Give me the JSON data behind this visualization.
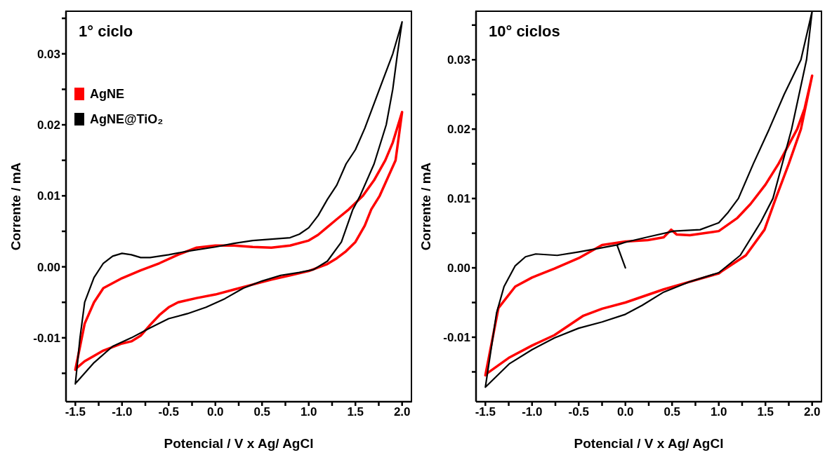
{
  "chart_data": [
    {
      "type": "line",
      "title": "1° ciclo",
      "xlabel": "Potencial / V x Ag/ AgCl",
      "ylabel": "Corrente / mA",
      "xlim": [
        -1.6,
        2.1
      ],
      "ylim": [
        -0.019,
        0.036
      ],
      "xticks": [
        -1.5,
        {
          "value": -1.25,
          "label": null
        },
        {
          "value": -1,
          "label": "-1.0"
        },
        {
          "value": -0.75,
          "label": null
        },
        {
          "value": -0.5,
          "label": "-0.5"
        },
        {
          "value": -0.25,
          "label": null
        },
        {
          "value": 0,
          "label": "0.0"
        },
        {
          "value": 0.25,
          "label": null
        },
        0.5,
        {
          "value": 0.75,
          "label": null
        },
        {
          "value": 1,
          "label": "1.0"
        },
        {
          "value": 1.25,
          "label": null
        },
        1.5,
        {
          "value": 1.75,
          "label": null
        },
        {
          "value": 2,
          "label": "2.0"
        }
      ],
      "yticks": [
        {
          "value": -0.015,
          "label": null
        },
        {
          "value": -0.01,
          "label": "-0.01"
        },
        {
          "value": -0.005,
          "label": null
        },
        {
          "value": 0,
          "label": "0.00"
        },
        {
          "value": 0.005,
          "label": null
        },
        0.01,
        {
          "value": 0.015,
          "label": null
        },
        {
          "value": 0.02,
          "label": "0.02"
        },
        {
          "value": 0.025,
          "label": null
        },
        {
          "value": 0.03,
          "label": "0.03"
        },
        {
          "value": 0.035,
          "label": null
        }
      ],
      "legend": "top left",
      "marker": "none",
      "line_style": "solid",
      "grid": false,
      "series": [
        {
          "name": "AgNE",
          "color": "#ff0000",
          "x": [
            -1.5,
            -1.4,
            -1.3,
            -1.2,
            -1.0,
            -0.8,
            -0.6,
            -0.4,
            -0.2,
            0.0,
            0.2,
            0.4,
            0.6,
            0.8,
            1.0,
            1.1,
            1.2,
            1.3,
            1.43,
            1.58,
            1.7,
            1.82,
            1.9,
            2.0,
            1.93,
            1.76,
            1.67,
            1.6,
            1.5,
            1.4,
            1.3,
            1.2,
            1.0,
            0.8,
            0.6,
            0.4,
            0.2,
            0.0,
            -0.2,
            -0.4,
            -0.5,
            -0.6,
            -0.7,
            -0.8,
            -0.9,
            -1.0,
            -1.2,
            -1.4,
            -1.49
          ],
          "values": [
            -0.0145,
            -0.008,
            -0.005,
            -0.003,
            -0.0016,
            -0.0005,
            0.0005,
            0.0017,
            0.0027,
            0.003,
            0.003,
            0.0028,
            0.0027,
            0.003,
            0.0037,
            0.0045,
            0.0056,
            0.0067,
            0.0081,
            0.01,
            0.0122,
            0.015,
            0.0175,
            0.0218,
            0.015,
            0.01,
            0.0081,
            0.0058,
            0.0035,
            0.0022,
            0.0012,
            0.0004,
            -0.0006,
            -0.0012,
            -0.0018,
            -0.0025,
            -0.0032,
            -0.0039,
            -0.0044,
            -0.005,
            -0.0057,
            -0.0068,
            -0.0082,
            -0.0097,
            -0.0105,
            -0.0108,
            -0.0118,
            -0.0133,
            -0.0143
          ]
        },
        {
          "name": "AgNE@TiO₂",
          "color": "#000000",
          "x": [
            -1.5,
            -1.45,
            -1.4,
            -1.3,
            -1.2,
            -1.1,
            -1.0,
            -0.9,
            -0.8,
            -0.7,
            -0.5,
            -0.3,
            0.0,
            0.2,
            0.4,
            0.6,
            0.8,
            0.9,
            1.0,
            1.1,
            1.2,
            1.3,
            1.4,
            1.5,
            1.6,
            1.7,
            1.8,
            1.9,
            2.0,
            1.95,
            1.9,
            1.83,
            1.7,
            1.55,
            1.47,
            1.35,
            1.2,
            1.05,
            0.9,
            0.7,
            0.5,
            0.3,
            0.1,
            -0.1,
            -0.3,
            -0.5,
            -0.7,
            -0.9,
            -1.1,
            -1.3,
            -1.49
          ],
          "values": [
            -0.0165,
            -0.01,
            -0.005,
            -0.0015,
            0.0005,
            0.0015,
            0.0019,
            0.0017,
            0.0013,
            0.0013,
            0.0017,
            0.0022,
            0.0028,
            0.0033,
            0.0037,
            0.0039,
            0.0041,
            0.0046,
            0.0055,
            0.0072,
            0.0095,
            0.0115,
            0.0145,
            0.0165,
            0.0195,
            0.023,
            0.0265,
            0.03,
            0.0345,
            0.03,
            0.025,
            0.02,
            0.0145,
            0.01,
            0.008,
            0.0035,
            0.0008,
            -0.0004,
            -0.0008,
            -0.0012,
            -0.002,
            -0.003,
            -0.0045,
            -0.0057,
            -0.0066,
            -0.0073,
            -0.0086,
            -0.01,
            -0.0112,
            -0.0135,
            -0.0163
          ]
        }
      ]
    },
    {
      "type": "line",
      "title": "10° ciclos",
      "xlabel": "Potencial / V x Ag/ AgCl",
      "ylabel": "Corrente / mA",
      "xlim": [
        -1.6,
        2.1
      ],
      "ylim": [
        -0.0193,
        0.037
      ],
      "xticks": [
        -1.5,
        {
          "value": -1.25,
          "label": null
        },
        {
          "value": -1,
          "label": "-1.0"
        },
        {
          "value": -0.75,
          "label": null
        },
        {
          "value": -0.5,
          "label": "-0.5"
        },
        {
          "value": -0.25,
          "label": null
        },
        {
          "value": 0,
          "label": "0.0"
        },
        {
          "value": 0.25,
          "label": null
        },
        0.5,
        {
          "value": 0.75,
          "label": null
        },
        {
          "value": 1,
          "label": "1.0"
        },
        {
          "value": 1.25,
          "label": null
        },
        1.5,
        {
          "value": 1.75,
          "label": null
        },
        {
          "value": 2,
          "label": "2.0"
        }
      ],
      "yticks": [
        {
          "value": -0.015,
          "label": null
        },
        {
          "value": -0.01,
          "label": "-0.01"
        },
        {
          "value": -0.005,
          "label": null
        },
        {
          "value": 0,
          "label": "0.00"
        },
        {
          "value": 0.005,
          "label": null
        },
        0.01,
        {
          "value": 0.015,
          "label": null
        },
        {
          "value": 0.02,
          "label": "0.02"
        },
        {
          "value": 0.025,
          "label": null
        },
        {
          "value": 0.03,
          "label": "0.03"
        },
        {
          "value": 0.035,
          "label": null
        }
      ],
      "marker": "none",
      "line_style": "solid",
      "grid": false,
      "series": [
        {
          "color": "#ff0000",
          "x": [
            -1.5,
            -1.36,
            -1.18,
            -1.0,
            -0.76,
            -0.5,
            -0.25,
            0.0,
            0.24,
            0.41,
            0.49,
            0.55,
            0.69,
            1.0,
            1.2,
            1.34,
            1.5,
            1.64,
            1.84,
            1.92,
            2.0,
            1.88,
            1.75,
            1.61,
            1.49,
            1.29,
            1.03,
            1.0,
            0.69,
            0.41,
            0.0,
            -0.25,
            -0.45,
            -0.76,
            -1.0,
            -1.24,
            -1.49
          ],
          "values": [
            -0.0155,
            -0.0058,
            -0.0027,
            -0.0014,
            -0.0001,
            0.0014,
            0.0033,
            0.0038,
            0.004,
            0.0044,
            0.0055,
            0.0048,
            0.0047,
            0.0053,
            0.0072,
            0.0092,
            0.012,
            0.015,
            0.02,
            0.023,
            0.0277,
            0.02,
            0.015,
            0.01,
            0.0055,
            0.0018,
            -0.0005,
            -0.0008,
            -0.002,
            -0.0031,
            -0.005,
            -0.0059,
            -0.0069,
            -0.0097,
            -0.0112,
            -0.0129,
            -0.0153
          ]
        },
        {
          "color": "#000000",
          "x": [
            0.0,
            -0.09,
            0.0,
            0.29,
            0.52,
            0.8,
            1.0,
            1.1,
            1.21,
            1.37,
            1.54,
            1.7,
            1.88,
            2.0,
            1.94,
            1.78,
            1.58,
            1.45,
            1.4,
            1.23,
            1.0,
            0.69,
            0.41,
            0.18,
            0.0,
            -0.25,
            -0.5,
            -0.76,
            -1.0,
            -1.24,
            -1.5,
            -1.38,
            -1.3,
            -1.18,
            -1.07,
            -0.96,
            -0.73,
            -0.5,
            -0.25,
            -0.09
          ],
          "values": [
            0.0,
            0.0033,
            0.0037,
            0.0046,
            0.0053,
            0.0055,
            0.0065,
            0.008,
            0.01,
            0.015,
            0.02,
            0.025,
            0.03,
            0.037,
            0.03,
            0.02,
            0.01,
            0.0066,
            0.0055,
            0.0018,
            -0.0007,
            -0.002,
            -0.0035,
            -0.0054,
            -0.0067,
            -0.0078,
            -0.0087,
            -0.0101,
            -0.0118,
            -0.0138,
            -0.0172,
            -0.0065,
            -0.0027,
            0.0003,
            0.0016,
            0.002,
            0.0018,
            0.0023,
            0.0029,
            0.0033
          ]
        }
      ]
    }
  ]
}
